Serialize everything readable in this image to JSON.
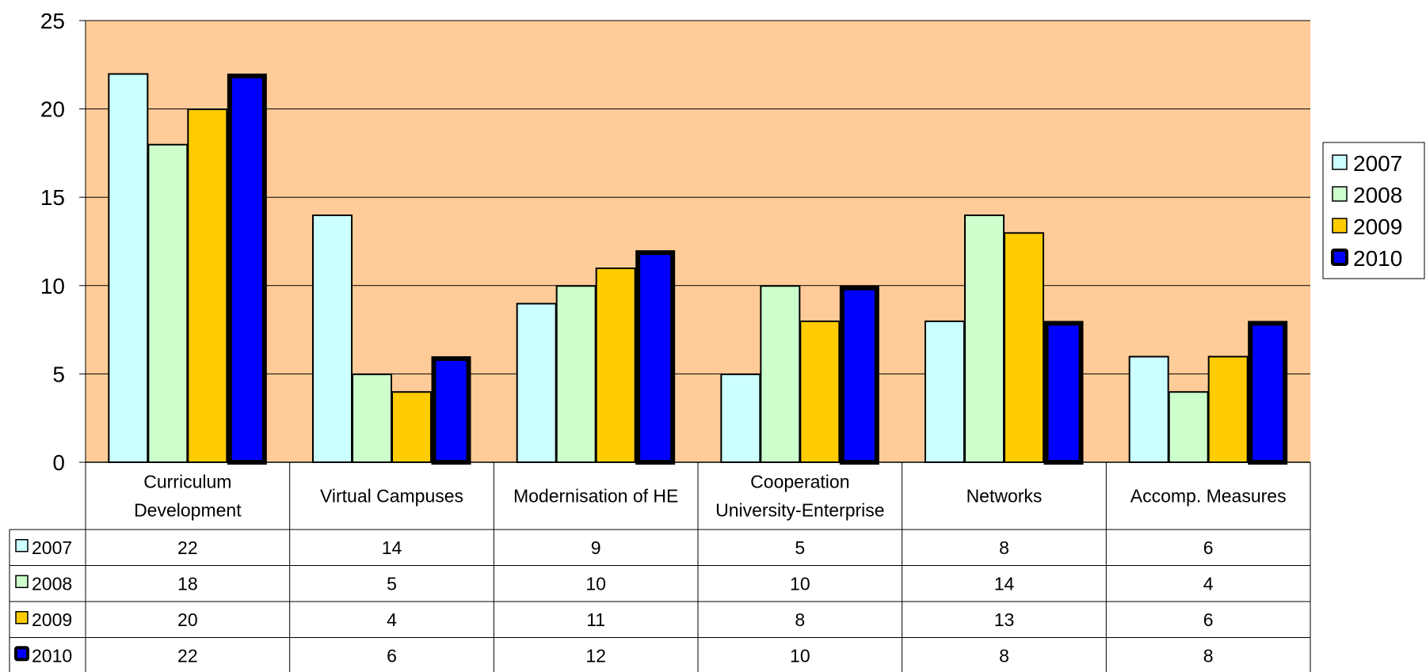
{
  "chart_data": {
    "type": "bar",
    "categories": [
      [
        "Curriculum",
        "Development"
      ],
      [
        "Virtual Campuses"
      ],
      [
        "Modernisation of HE"
      ],
      [
        "Cooperation",
        "University-Enterprise"
      ],
      [
        "Networks"
      ],
      [
        "Accomp. Measures"
      ]
    ],
    "series": [
      {
        "name": "2007",
        "values": [
          22,
          14,
          9,
          5,
          8,
          6
        ],
        "color": "#ccffff",
        "border": "thin"
      },
      {
        "name": "2008",
        "values": [
          18,
          5,
          10,
          10,
          14,
          4
        ],
        "color": "#ccffcc",
        "border": "thin"
      },
      {
        "name": "2009",
        "values": [
          20,
          4,
          11,
          8,
          13,
          6
        ],
        "color": "#ffcc00",
        "border": "thin"
      },
      {
        "name": "2010",
        "values": [
          22,
          6,
          12,
          10,
          8,
          8
        ],
        "color": "#0000ff",
        "border": "thick"
      }
    ],
    "ylim": [
      0,
      25
    ],
    "yticks": [
      0,
      5,
      10,
      15,
      20,
      25
    ],
    "grid": true,
    "plot_background": "#ffcc99",
    "legend": "right",
    "data_table": true
  }
}
